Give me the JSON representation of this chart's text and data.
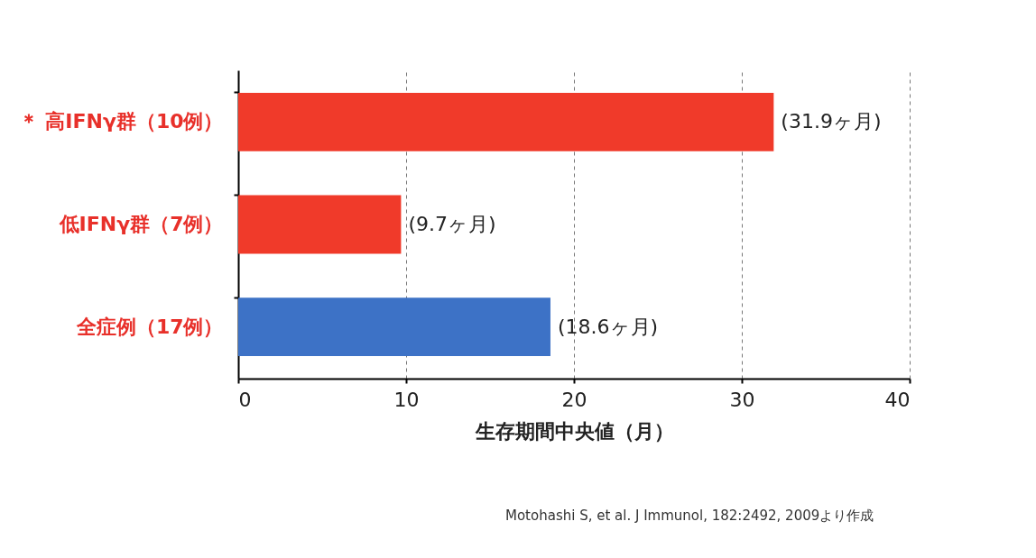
{
  "chart_data": {
    "type": "bar",
    "orientation": "horizontal",
    "xlabel": "生存期間中央値（月）",
    "categories": [
      "＊ 高IFNγ群（10例）",
      "低IFNγ群（7例）",
      "全症例（17例）"
    ],
    "values": [
      31.9,
      9.7,
      18.6
    ],
    "colors": [
      "#f03a2a",
      "#f03a2a",
      "#3d72c6"
    ],
    "value_labels": [
      "(31.9ヶ月)",
      "(9.7ヶ月)",
      "(18.6ヶ月)"
    ],
    "xlim": [
      0,
      40
    ],
    "xticks": [
      0,
      10,
      20,
      30,
      40
    ],
    "grid": "x",
    "annotations": [
      "Motohashi S, et al. J Immunol, 182:2492, 2009より作成"
    ]
  }
}
